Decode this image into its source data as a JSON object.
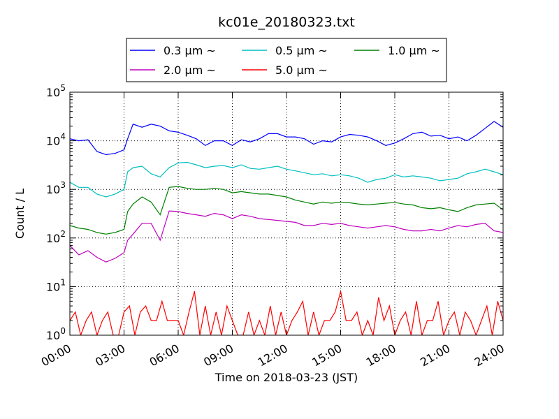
{
  "chart_data": {
    "type": "line",
    "title": "kc01e_20180323.txt",
    "xlabel": "Time on 2018-03-23 (JST)",
    "ylabel": "Count / L",
    "x_tick_labels": [
      "00:00",
      "03:00",
      "06:00",
      "09:00",
      "12:00",
      "15:00",
      "18:00",
      "21:00",
      "24:00"
    ],
    "x_tick_hours": [
      0,
      3,
      6,
      9,
      12,
      15,
      18,
      21,
      24
    ],
    "xlim_hours": [
      0,
      24
    ],
    "y_scale": "log",
    "ylim": [
      1,
      100000
    ],
    "y_tick_values": [
      1,
      10,
      100,
      1000,
      10000,
      100000
    ],
    "y_tick_labels": [
      {
        "base": "10",
        "exp": "0"
      },
      {
        "base": "10",
        "exp": "1"
      },
      {
        "base": "10",
        "exp": "2"
      },
      {
        "base": "10",
        "exp": "3"
      },
      {
        "base": "10",
        "exp": "4"
      },
      {
        "base": "10",
        "exp": "5"
      }
    ],
    "grid": true,
    "grid_axis": "x-and-y-major-dotted",
    "legend_position": "top-center, above plot",
    "series": [
      {
        "name": "0.3 μm ~",
        "color": "#0000ff",
        "x": [
          0,
          0.5,
          1,
          1.5,
          2,
          2.5,
          3,
          3.2,
          3.5,
          4,
          4.5,
          5,
          5.5,
          6,
          6.5,
          7,
          7.5,
          8,
          8.5,
          9,
          9.5,
          10,
          10.5,
          11,
          11.5,
          12,
          12.5,
          13,
          13.5,
          14,
          14.5,
          15,
          15.5,
          16,
          16.5,
          17,
          17.5,
          18,
          18.5,
          19,
          19.5,
          20,
          20.5,
          21,
          21.5,
          22,
          22.5,
          23,
          23.5,
          24
        ],
        "y": [
          11000,
          10000,
          10500,
          6000,
          5200,
          5500,
          6500,
          11000,
          22000,
          19000,
          22000,
          20000,
          16000,
          15000,
          13000,
          11000,
          8000,
          10000,
          10000,
          8000,
          10500,
          9500,
          11000,
          14000,
          14000,
          12000,
          12000,
          11000,
          8500,
          10000,
          9500,
          12000,
          13500,
          13000,
          12000,
          10000,
          8000,
          9000,
          11000,
          14000,
          15000,
          12500,
          13000,
          11000,
          12000,
          10000,
          13000,
          18000,
          25000,
          19000
        ]
      },
      {
        "name": "0.5 μm ~",
        "color": "#00bfbf",
        "x": [
          0,
          0.5,
          1,
          1.5,
          2,
          2.5,
          3,
          3.2,
          3.5,
          4,
          4.5,
          5,
          5.5,
          6,
          6.5,
          7,
          7.5,
          8,
          8.5,
          9,
          9.5,
          10,
          10.5,
          11,
          11.5,
          12,
          12.5,
          13,
          13.5,
          14,
          14.5,
          15,
          15.5,
          16,
          16.5,
          17,
          17.5,
          18,
          18.5,
          19,
          19.5,
          20,
          20.5,
          21,
          21.5,
          22,
          22.5,
          23,
          23.5,
          24
        ],
        "y": [
          1400,
          1100,
          1100,
          800,
          700,
          800,
          1000,
          2300,
          2800,
          3000,
          2100,
          1800,
          2800,
          3500,
          3600,
          3200,
          2800,
          3000,
          3100,
          2800,
          3200,
          2700,
          2600,
          2800,
          3000,
          2600,
          2400,
          2200,
          2000,
          2100,
          1900,
          2000,
          1900,
          1700,
          1400,
          1600,
          1700,
          2000,
          1800,
          1900,
          1800,
          1700,
          1500,
          1600,
          1700,
          2100,
          2300,
          2600,
          2300,
          2000
        ]
      },
      {
        "name": "1.0 μm ~",
        "color": "#008000",
        "x": [
          0,
          0.5,
          1,
          1.5,
          2,
          2.5,
          3,
          3.2,
          3.5,
          4,
          4.5,
          5,
          5.5,
          6,
          6.5,
          7,
          7.5,
          8,
          8.5,
          9,
          9.5,
          10,
          10.5,
          11,
          11.5,
          12,
          12.5,
          13,
          13.5,
          14,
          14.5,
          15,
          15.5,
          16,
          16.5,
          17,
          17.5,
          18,
          18.5,
          19,
          19.5,
          20,
          20.5,
          21,
          21.5,
          22,
          22.5,
          23,
          23.5,
          24
        ],
        "y": [
          180,
          160,
          150,
          130,
          120,
          130,
          150,
          350,
          500,
          700,
          550,
          300,
          1100,
          1150,
          1050,
          1000,
          1000,
          1050,
          1000,
          850,
          900,
          850,
          800,
          800,
          750,
          700,
          600,
          550,
          500,
          550,
          520,
          550,
          530,
          500,
          480,
          500,
          520,
          540,
          500,
          480,
          420,
          400,
          420,
          380,
          350,
          420,
          480,
          500,
          520,
          380
        ]
      },
      {
        "name": "2.0 μm ~",
        "color": "#bf00bf",
        "x": [
          0,
          0.5,
          1,
          1.5,
          2,
          2.5,
          3,
          3.2,
          3.5,
          4,
          4.5,
          5,
          5.5,
          6,
          6.5,
          7,
          7.5,
          8,
          8.5,
          9,
          9.5,
          10,
          10.5,
          11,
          11.5,
          12,
          12.5,
          13,
          13.5,
          14,
          14.5,
          15,
          15.5,
          16,
          16.5,
          17,
          17.5,
          18,
          18.5,
          19,
          19.5,
          20,
          20.5,
          21,
          21.5,
          22,
          22.5,
          23,
          23.5,
          24
        ],
        "y": [
          70,
          45,
          55,
          40,
          32,
          38,
          50,
          90,
          120,
          200,
          200,
          90,
          360,
          350,
          320,
          300,
          280,
          320,
          300,
          250,
          300,
          280,
          250,
          240,
          230,
          220,
          210,
          180,
          180,
          200,
          190,
          200,
          180,
          170,
          160,
          170,
          180,
          170,
          150,
          140,
          140,
          150,
          140,
          160,
          180,
          170,
          190,
          200,
          140,
          130
        ]
      },
      {
        "name": "5.0 μm ~",
        "color": "#ff0000",
        "x": [
          0,
          0.3,
          0.6,
          0.9,
          1.2,
          1.5,
          1.8,
          2.1,
          2.4,
          2.7,
          3,
          3.3,
          3.6,
          3.9,
          4.2,
          4.5,
          4.8,
          5.1,
          5.4,
          5.7,
          6,
          6.3,
          6.6,
          6.9,
          7.2,
          7.5,
          7.8,
          8.1,
          8.4,
          8.7,
          9,
          9.3,
          9.6,
          9.9,
          10.2,
          10.5,
          10.8,
          11.1,
          11.4,
          11.7,
          12,
          12.3,
          12.6,
          12.9,
          13.2,
          13.5,
          13.8,
          14.1,
          14.4,
          14.7,
          15,
          15.3,
          15.6,
          15.9,
          16.2,
          16.5,
          16.8,
          17.1,
          17.4,
          17.7,
          18,
          18.3,
          18.6,
          18.9,
          19.2,
          19.5,
          19.8,
          20.1,
          20.4,
          20.7,
          21,
          21.3,
          21.6,
          21.9,
          22.2,
          22.5,
          22.8,
          23.1,
          23.4,
          23.7,
          24
        ],
        "y": [
          2,
          3,
          1,
          2,
          3,
          1,
          2,
          3,
          1,
          1,
          3,
          4,
          1,
          3,
          4,
          2,
          2,
          5,
          2,
          2,
          2,
          1,
          3,
          8,
          1,
          4,
          1,
          3,
          1,
          4,
          2,
          1,
          1,
          3,
          1,
          2,
          1,
          4,
          1,
          3,
          1,
          2,
          3,
          5,
          1,
          3,
          1,
          2,
          2,
          3,
          8,
          2,
          2,
          3,
          1,
          2,
          1,
          6,
          2,
          4,
          1,
          2,
          3,
          1,
          5,
          1,
          2,
          2,
          5,
          1,
          2,
          3,
          1,
          3,
          2,
          1,
          2,
          4,
          1,
          5,
          2
        ]
      }
    ]
  }
}
